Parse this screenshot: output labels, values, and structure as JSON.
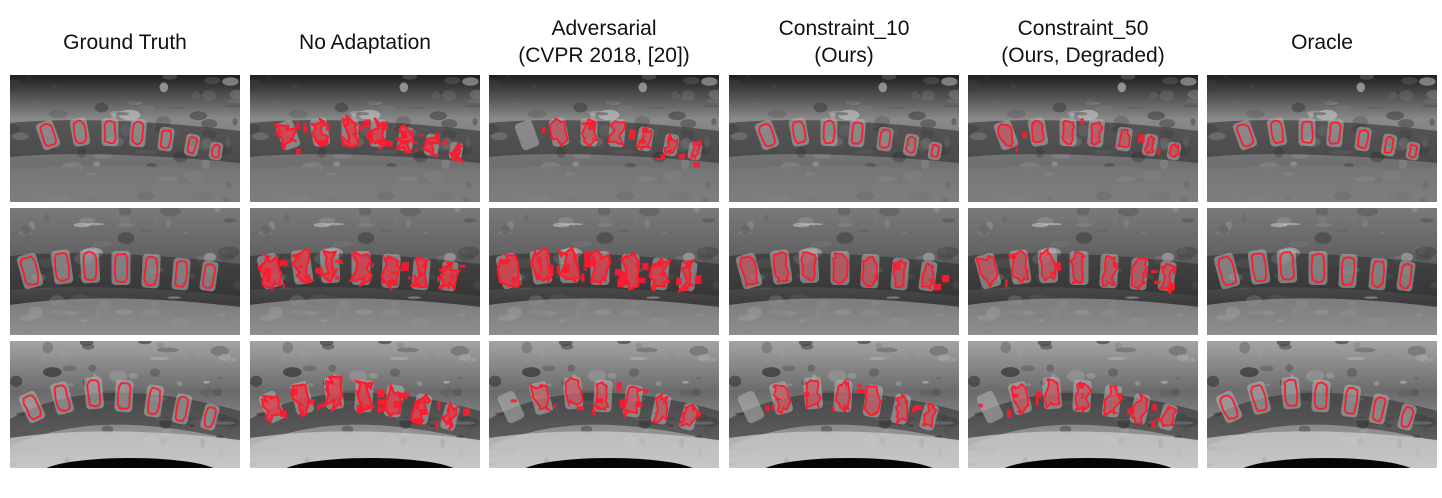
{
  "figure": {
    "columns": [
      {
        "title_line1": "Ground Truth",
        "title_line2": "",
        "row_segmentations": [
          "clean",
          "clean",
          "clean"
        ]
      },
      {
        "title_line1": "No Adaptation",
        "title_line2": "",
        "row_segmentations": [
          "noisy",
          "noisy",
          "noisy"
        ]
      },
      {
        "title_line1": "Adversarial",
        "title_line2": "(CVPR 2018, [20])",
        "row_segmentations": [
          "partial",
          "noisy",
          "partial"
        ]
      },
      {
        "title_line1": "Constraint_10",
        "title_line2": "(Ours)",
        "row_segmentations": [
          "clean",
          "near-clean",
          "partial"
        ]
      },
      {
        "title_line1": "Constraint_50",
        "title_line2": "(Ours, Degraded)",
        "row_segmentations": [
          "near-clean",
          "partial",
          "partial"
        ]
      },
      {
        "title_line1": "Oracle",
        "title_line2": "",
        "row_segmentations": [
          "clean",
          "clean",
          "clean"
        ]
      }
    ],
    "colors": {
      "segmentation": "#ff1a2e",
      "background": "#ffffff",
      "header_text": "#111111"
    }
  }
}
